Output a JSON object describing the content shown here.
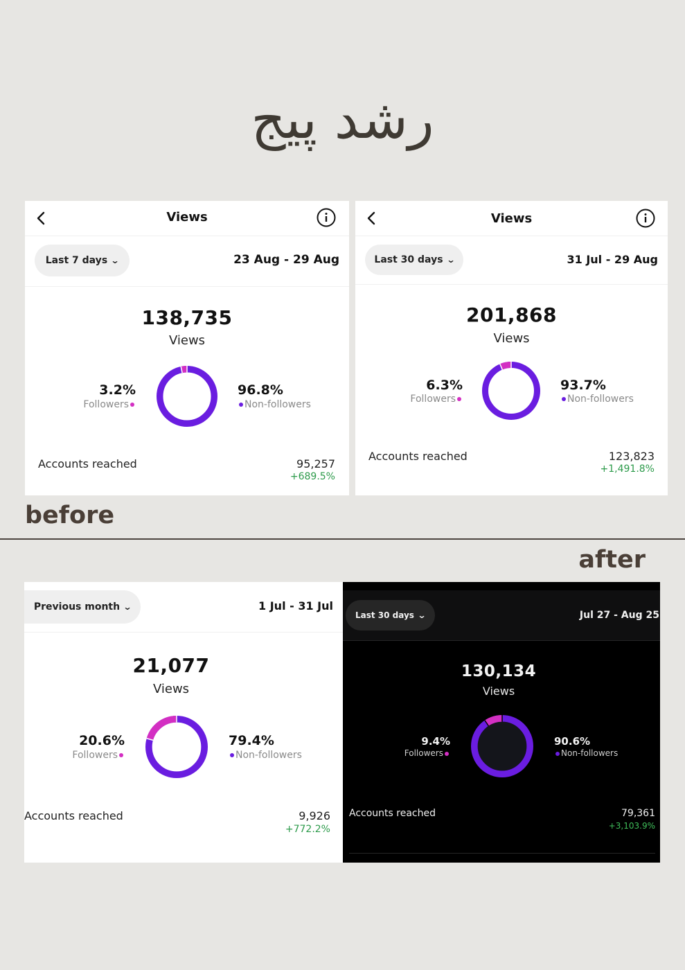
{
  "page_title": "رشد پیج",
  "labels": {
    "before": "before",
    "after": "after"
  },
  "colors": {
    "followers": "#d32fc2",
    "non_followers": "#6a1de0",
    "positive_change": "#2c9a4a"
  },
  "icons": {
    "back": "chevron-left-icon",
    "info": "info-circle-icon",
    "dropdown": "chevron-down-icon"
  },
  "panels": [
    {
      "title": "Views",
      "period": "Last 7 days",
      "date_range": "23 Aug - 29 Aug",
      "views": "138,735",
      "views_label": "Views",
      "followers_pct": "3.2%",
      "followers_fraction": 0.032,
      "followers_label": "Followers",
      "non_followers_pct": "96.8%",
      "non_followers_label": "Non-followers",
      "accounts_reached_label": "Accounts reached",
      "accounts_reached": "95,257",
      "accounts_change": "+689.5%"
    },
    {
      "title": "Views",
      "period": "Last 30 days",
      "date_range": "31 Jul - 29 Aug",
      "views": "201,868",
      "views_label": "Views",
      "followers_pct": "6.3%",
      "followers_fraction": 0.063,
      "followers_label": "Followers",
      "non_followers_pct": "93.7%",
      "non_followers_label": "Non-followers",
      "accounts_reached_label": "Accounts reached",
      "accounts_reached": "123,823",
      "accounts_change": "+1,491.8%"
    },
    {
      "period": "Previous month",
      "date_range": "1 Jul - 31 Jul",
      "views": "21,077",
      "views_label": "Views",
      "followers_pct": "20.6%",
      "followers_fraction": 0.206,
      "followers_label": "Followers",
      "non_followers_pct": "79.4%",
      "non_followers_label": "Non-followers",
      "accounts_reached_label": "Accounts reached",
      "accounts_reached": "9,926",
      "accounts_change": "+772.2%"
    },
    {
      "period": "Last 30 days",
      "date_range": "Jul 27 - Aug 25",
      "views": "130,134",
      "views_label": "Views",
      "followers_pct": "9.4%",
      "followers_fraction": 0.094,
      "followers_label": "Followers",
      "non_followers_pct": "90.6%",
      "non_followers_label": "Non-followers",
      "accounts_reached_label": "Accounts reached",
      "accounts_reached": "79,361",
      "accounts_change": "+3,103.9%"
    }
  ]
}
